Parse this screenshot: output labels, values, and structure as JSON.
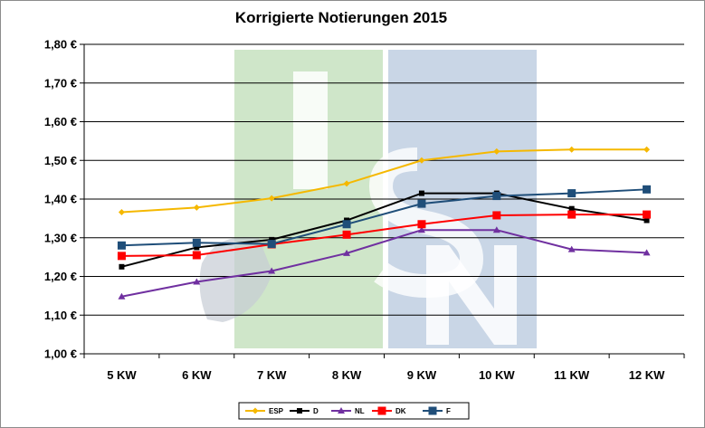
{
  "chart_data": {
    "type": "line",
    "title": "Korrigierte Notierungen 2015",
    "xlabel": "",
    "ylabel": "",
    "categories": [
      "5 KW",
      "6 KW",
      "7 KW",
      "8 KW",
      "9 KW",
      "10 KW",
      "11 KW",
      "12 KW"
    ],
    "ylim": [
      1.0,
      1.8
    ],
    "yticks": [
      1.0,
      1.1,
      1.2,
      1.3,
      1.4,
      1.5,
      1.6,
      1.7,
      1.8
    ],
    "ytick_labels": [
      "1,00 €",
      "1,10 €",
      "1,20 €",
      "1,30 €",
      "1,40 €",
      "1,50 €",
      "1,60 €",
      "1,70 €",
      "1,80 €"
    ],
    "grid": true,
    "legend_position": "bottom",
    "series": [
      {
        "name": "ESP",
        "color": "#f5b800",
        "marker": "diamond",
        "values": [
          1.366,
          1.378,
          1.402,
          1.44,
          1.5,
          1.523,
          1.528,
          1.528
        ]
      },
      {
        "name": "D",
        "color": "#000000",
        "marker": "square-small",
        "values": [
          1.225,
          1.275,
          1.295,
          1.345,
          1.415,
          1.415,
          1.375,
          1.345
        ]
      },
      {
        "name": "NL",
        "color": "#7030a0",
        "marker": "triangle",
        "values": [
          1.148,
          1.186,
          1.214,
          1.26,
          1.32,
          1.32,
          1.27,
          1.261
        ]
      },
      {
        "name": "DK",
        "color": "#ff0000",
        "marker": "square",
        "values": [
          1.253,
          1.255,
          1.283,
          1.308,
          1.335,
          1.358,
          1.36,
          1.36
        ]
      },
      {
        "name": "F",
        "color": "#1f4e79",
        "marker": "square",
        "values": [
          1.28,
          1.287,
          1.284,
          1.335,
          1.388,
          1.408,
          1.415,
          1.425
        ]
      }
    ]
  },
  "watermark": {
    "letters": "ISN",
    "colors": [
      "#cfe6c9",
      "#c9d6e6"
    ]
  }
}
